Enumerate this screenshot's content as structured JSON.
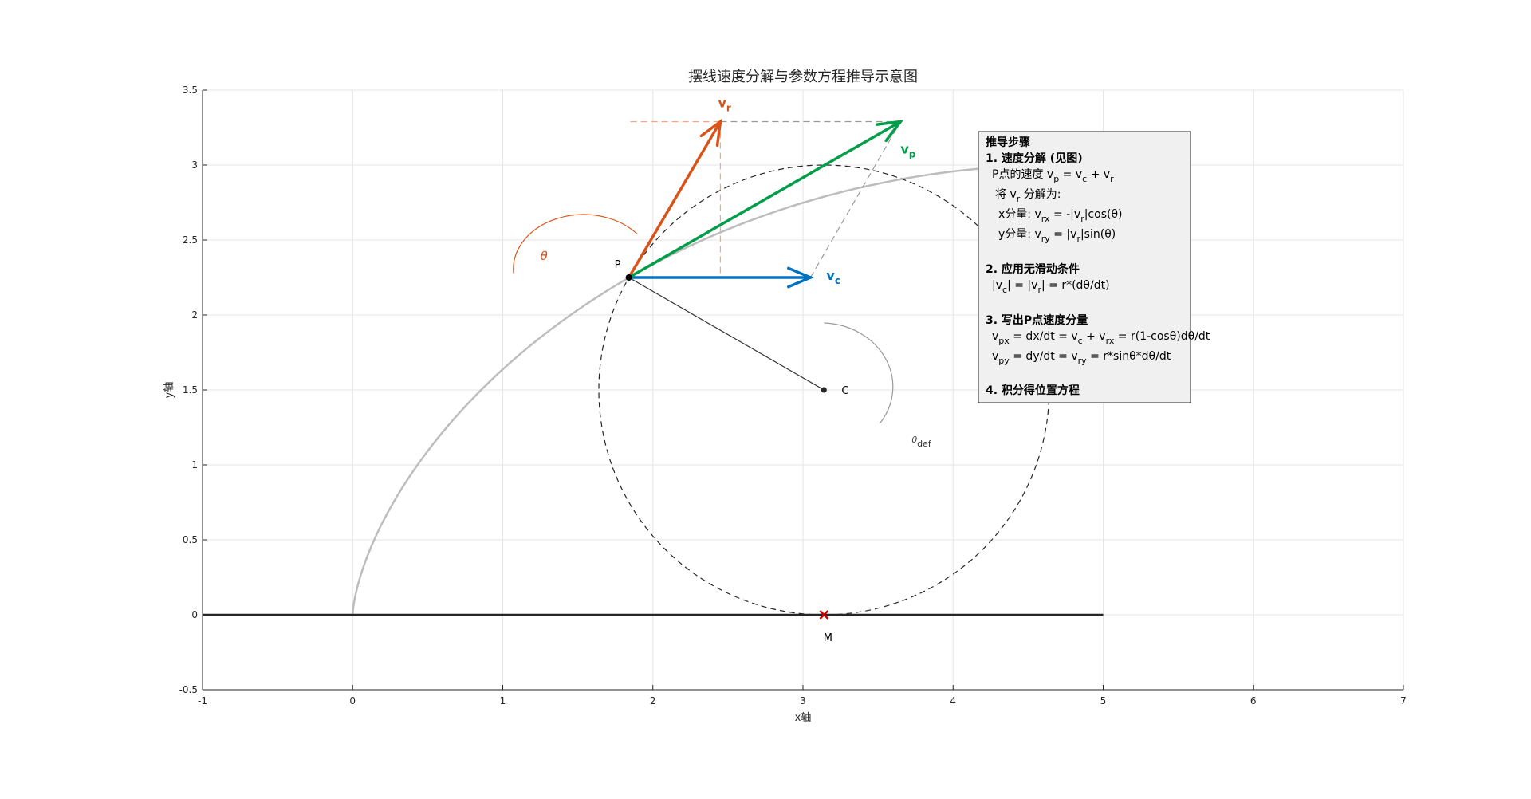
{
  "figure": {
    "title": "摆线速度分解与参数方程推导示意图",
    "xlabel": "x轴",
    "ylabel": "y轴"
  },
  "chart_data": {
    "type": "line",
    "title": "摆线速度分解与参数方程推导示意图",
    "xlabel": "x轴",
    "ylabel": "y轴",
    "xlim": [
      -1,
      7
    ],
    "ylim": [
      -0.5,
      3.5
    ],
    "xticks": [
      -1,
      0,
      1,
      2,
      3,
      4,
      5,
      6,
      7
    ],
    "xtick_labels": [
      "-1",
      "0",
      "1",
      "2",
      "3",
      "4",
      "5",
      "6",
      "7"
    ],
    "yticks": [
      -0.5,
      0,
      0.5,
      1,
      1.5,
      2,
      2.5,
      3,
      3.5
    ],
    "ytick_labels": [
      "-0.5",
      "0",
      "0.5",
      "1",
      "1.5",
      "2",
      "2.5",
      "3",
      "3.5"
    ],
    "grid": true,
    "circle_radius": 1.5,
    "series": [
      {
        "kind": "cycloid",
        "radius": 1.5,
        "t_range": [
          0,
          3.15
        ],
        "color": "#bdbdbd"
      },
      {
        "kind": "ground",
        "x": [
          -1,
          5
        ],
        "y": [
          0,
          0
        ],
        "color": "#262626"
      }
    ],
    "points": [
      {
        "label": "P",
        "x": 1.84,
        "y": 2.25
      },
      {
        "label": "C",
        "x": 3.14,
        "y": 1.5
      },
      {
        "label": "M",
        "x": 3.14,
        "y": 0
      }
    ],
    "vectors": [
      {
        "name": "v_r",
        "text": "v",
        "sub": "r",
        "from": [
          1.84,
          2.25
        ],
        "to": [
          2.45,
          3.29
        ],
        "color": "#d95319"
      },
      {
        "name": "v_c",
        "text": "v",
        "sub": "c",
        "from": [
          1.84,
          2.25
        ],
        "to": [
          3.05,
          2.25
        ],
        "color": "#0072bd"
      },
      {
        "name": "v_p",
        "text": "v",
        "sub": "p",
        "from": [
          1.84,
          2.25
        ],
        "to": [
          3.65,
          3.29
        ],
        "color": "#009e49"
      }
    ],
    "angle_labels": [
      {
        "name": "theta",
        "text": "θ",
        "color": "#d95319"
      },
      {
        "name": "theta_def",
        "text": "θ",
        "sub": "def",
        "color": "#333333"
      }
    ]
  },
  "derivation_box": {
    "heading": "推导步骤",
    "step1": {
      "title": "1. 速度分解 (见图)",
      "l1": [
        "P点的速度 v",
        "p",
        " = v",
        "c",
        " + v",
        "r",
        ""
      ],
      "l2": [
        "将 v",
        "r",
        " 分解为:"
      ],
      "l3": [
        "x分量: v",
        "rx",
        " = -|v",
        "r",
        "|cos(θ)"
      ],
      "l4": [
        "y分量: v",
        "ry",
        " =  |v",
        "r",
        "|sin(θ)"
      ]
    },
    "step2": {
      "title": "2. 应用无滑动条件",
      "l1": [
        "|v",
        "c",
        "| = |v",
        "r",
        "| = r*(dθ/dt)"
      ]
    },
    "step3": {
      "title": "3. 写出P点速度分量",
      "l1": [
        "v",
        "px",
        " = dx/dt = v",
        "c",
        " + v",
        "rx",
        " = r(1-cosθ)dθ/dt"
      ],
      "l2": [
        "v",
        "py",
        " = dy/dt = v",
        "ry",
        " = r*sinθ*dθ/dt"
      ]
    },
    "step4": {
      "title": "4. 积分得位置方程"
    }
  },
  "colors": {
    "vr": "#d95319",
    "vc": "#0072bd",
    "vp": "#009e49",
    "cycloid": "#bdbdbd",
    "ground": "#262626",
    "marker_m": "#cc0000",
    "grid": "#e6e6e6",
    "box_bg": "#f0f0f0"
  }
}
